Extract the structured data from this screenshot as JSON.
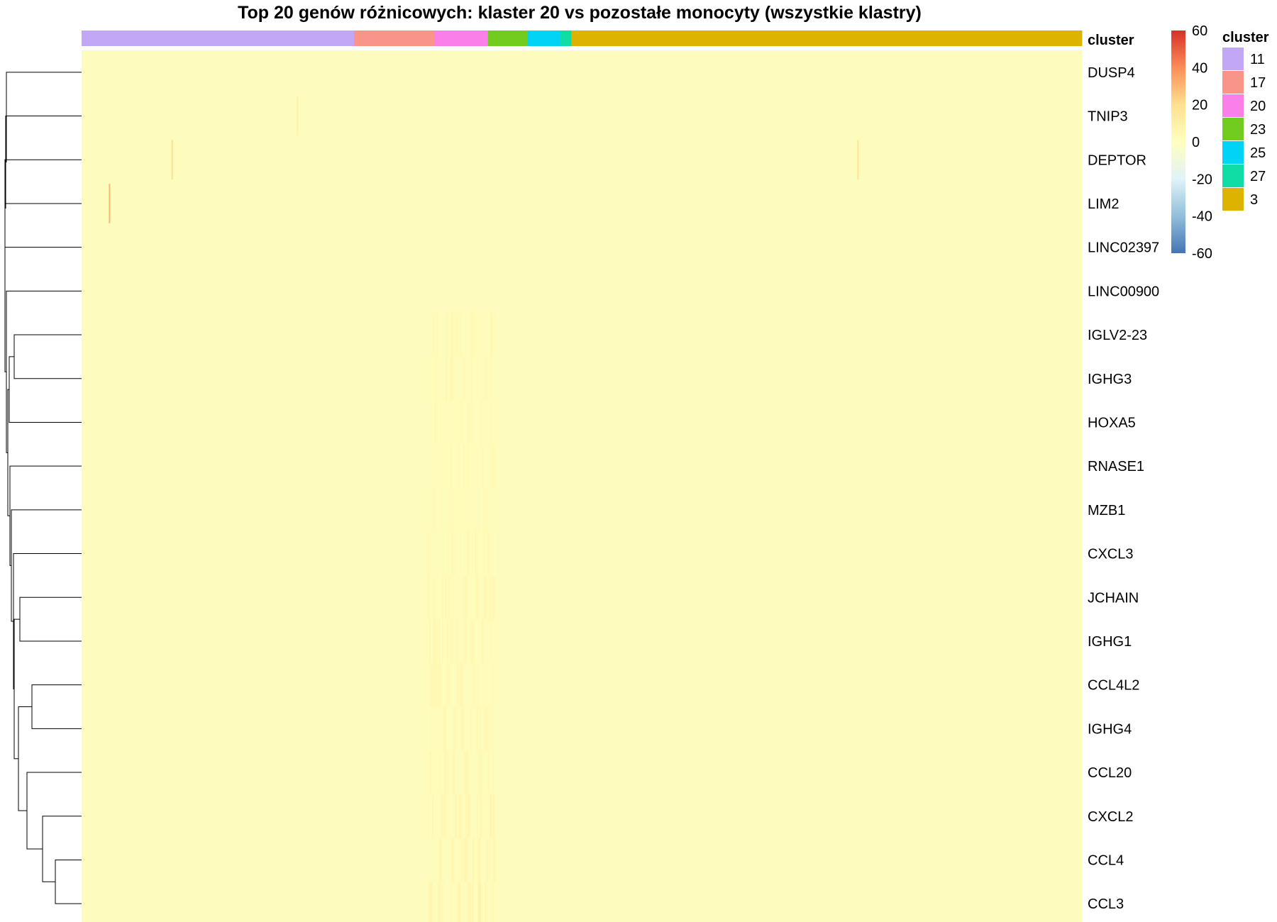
{
  "chart_data": {
    "type": "heatmap",
    "title": "Top 20 genów różnicowych: klaster 20 vs pozostałe monocyty (wszystkie klastry)",
    "rows": [
      "DUSP4",
      "TNIP3",
      "DEPTOR",
      "LIM2",
      "LINC02397",
      "LINC00900",
      "IGLV2-23",
      "IGHG3",
      "HOXA5",
      "RNASE1",
      "MZB1",
      "CXCL3",
      "JCHAIN",
      "IGHG1",
      "CCL4L2",
      "IGHG4",
      "CCL20",
      "CXCL2",
      "CCL4",
      "CCL3"
    ],
    "column_annotation": {
      "name": "cluster",
      "groups": [
        {
          "cluster": "11",
          "cells": 382,
          "color": "#C3A7F7"
        },
        {
          "cluster": "17",
          "cells": 113,
          "color": "#F99588"
        },
        {
          "cluster": "20",
          "cells": 75,
          "color": "#FA7FE9"
        },
        {
          "cluster": "23",
          "cells": 56,
          "color": "#72CC1F"
        },
        {
          "cluster": "25",
          "cells": 45,
          "color": "#00D3F5"
        },
        {
          "cluster": "27",
          "cells": 16,
          "color": "#10DDA5"
        },
        {
          "cluster": "3",
          "cells": 716,
          "color": "#DDB300"
        }
      ]
    },
    "color_scale": {
      "min": -60,
      "max": 60,
      "ticks": [
        "60",
        "40",
        "20",
        "0",
        "-20",
        "-40",
        "-60"
      ],
      "colors": [
        "#4575B4",
        "#91BFDB",
        "#E0F3F8",
        "#FFFFBF",
        "#FEE090",
        "#FC8D59",
        "#D73027"
      ]
    },
    "legend": {
      "title": "cluster",
      "labels": [
        "11",
        "17",
        "20",
        "23",
        "25",
        "27",
        "3"
      ],
      "colors": [
        "#C3A7F7",
        "#F99588",
        "#FA7FE9",
        "#72CC1F",
        "#00D3F5",
        "#10DDA5",
        "#DDB300"
      ]
    },
    "value_summary": {
      "baseline": 0,
      "note": "almost all cells near 0; mild enrichment (~2-6) in cluster 20 for IGLV2-23 through CCL3",
      "cluster20_mean": [
        0,
        0,
        0,
        0,
        0,
        0,
        4,
        4,
        3,
        3,
        3,
        4,
        4,
        4,
        4,
        4,
        4,
        5,
        5,
        6
      ],
      "outliers": [
        {
          "gene": "LIM2",
          "cluster": "11",
          "value": 30
        },
        {
          "gene": "DEPTOR",
          "cluster": "11",
          "value": 20
        },
        {
          "gene": "DEPTOR",
          "cluster": "3",
          "value": 18
        },
        {
          "gene": "TNIP3",
          "cluster": "11",
          "value": 10
        }
      ]
    }
  }
}
